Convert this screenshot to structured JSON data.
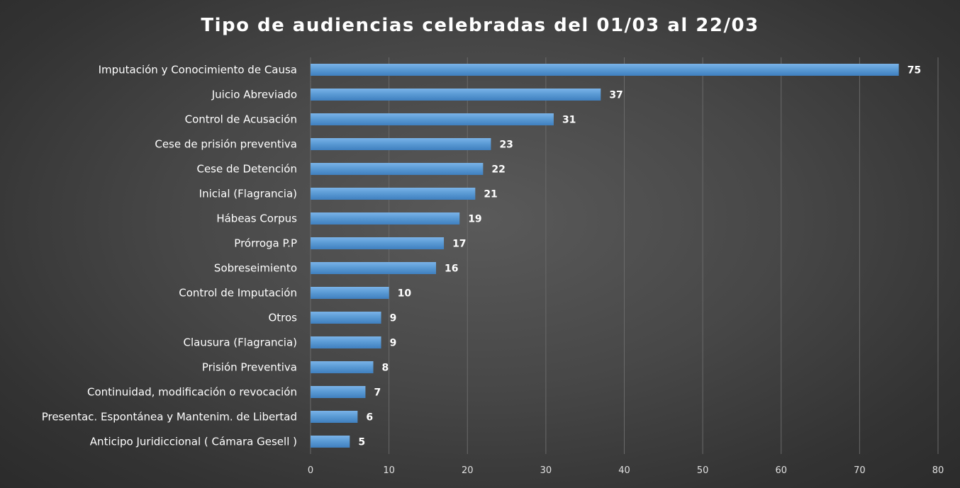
{
  "chart_data": {
    "type": "bar",
    "orientation": "horizontal",
    "title": "Tipo de audiencias celebradas del 01/03 al 22/03",
    "xlabel": "",
    "ylabel": "",
    "xlim": [
      0,
      80
    ],
    "ticks": [
      0,
      10,
      20,
      30,
      40,
      50,
      60,
      70,
      80
    ],
    "grid": true,
    "legend": "none",
    "bar_color": "#5b9bd5",
    "categories": [
      "Imputación y Conocimiento de Causa",
      "Juicio Abreviado",
      "Control de Acusación",
      "Cese de prisión preventiva",
      "Cese de Detención",
      "Inicial (Flagrancia)",
      "Hábeas Corpus",
      "Prórroga P.P",
      "Sobreseimiento",
      "Control de Imputación",
      "Otros",
      "Clausura (Flagrancia)",
      "Prisión Preventiva",
      "Continuidad, modificación o revocación",
      "Presentac. Espontánea y Mantenim. de Libertad",
      "Anticipo Juridiccional ( Cámara Gesell )"
    ],
    "values": [
      75,
      37,
      31,
      23,
      22,
      21,
      19,
      17,
      16,
      10,
      9,
      9,
      8,
      7,
      6,
      5
    ]
  }
}
